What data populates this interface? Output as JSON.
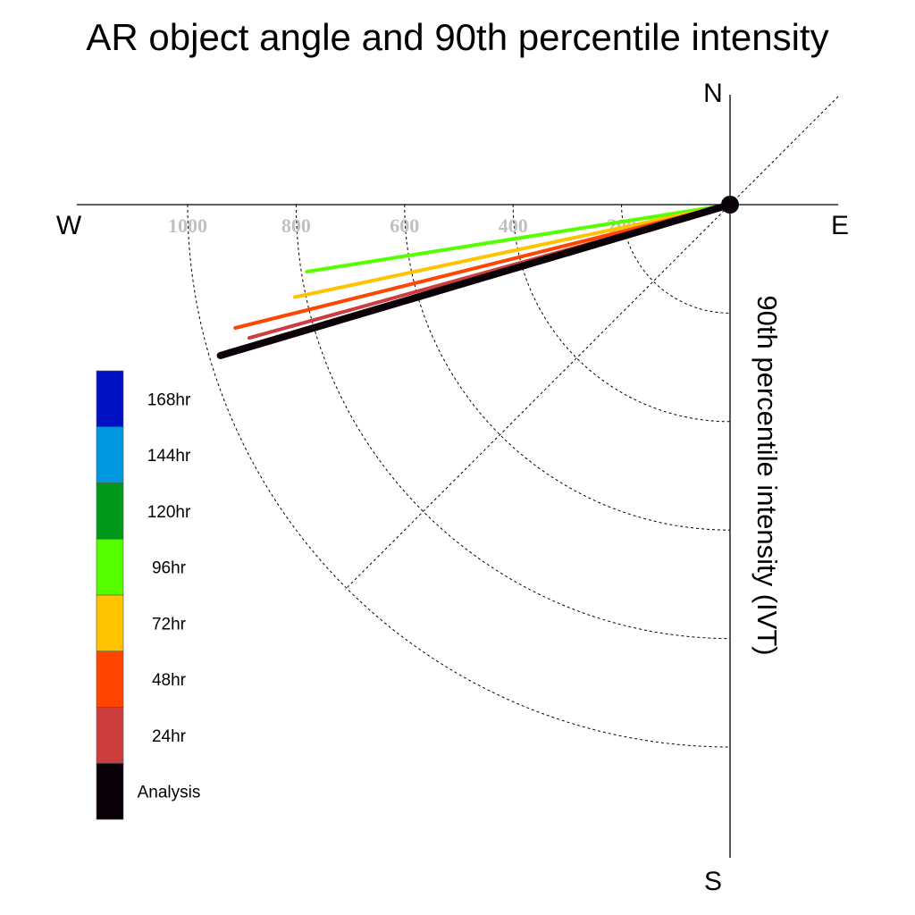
{
  "chart_data": {
    "type": "polar-vector",
    "title": "AR object angle and 90th percentile intensity",
    "ylabel": "90th percentile intensity (IVT)",
    "compass": {
      "north": "N",
      "south": "S",
      "east": "E",
      "west": "W"
    },
    "radial_ticks": [
      200,
      400,
      600,
      800,
      1000
    ],
    "radial_max": 1000,
    "series": [
      {
        "name": "96hr",
        "color": "#55ff00",
        "angle_deg": 261,
        "intensity": 790
      },
      {
        "name": "72hr",
        "color": "#ffc300",
        "angle_deg": 258,
        "intensity": 820
      },
      {
        "name": "48hr",
        "color": "#ff4500",
        "angle_deg": 256,
        "intensity": 940
      },
      {
        "name": "24hr",
        "color": "#cc3d3d",
        "angle_deg": 254.5,
        "intensity": 920
      },
      {
        "name": "Analysis",
        "color": "#0a0008",
        "angle_deg": 253.5,
        "intensity": 980
      }
    ],
    "legend": [
      {
        "label": "168hr",
        "color": "#0011c4"
      },
      {
        "label": "144hr",
        "color": "#0099e0"
      },
      {
        "label": "120hr",
        "color": "#00991a"
      },
      {
        "label": "96hr",
        "color": "#55ff00"
      },
      {
        "label": "72hr",
        "color": "#ffc300"
      },
      {
        "label": "48hr",
        "color": "#ff4500"
      },
      {
        "label": "24hr",
        "color": "#cc3d3d"
      },
      {
        "label": "Analysis",
        "color": "#0a0008"
      }
    ]
  }
}
